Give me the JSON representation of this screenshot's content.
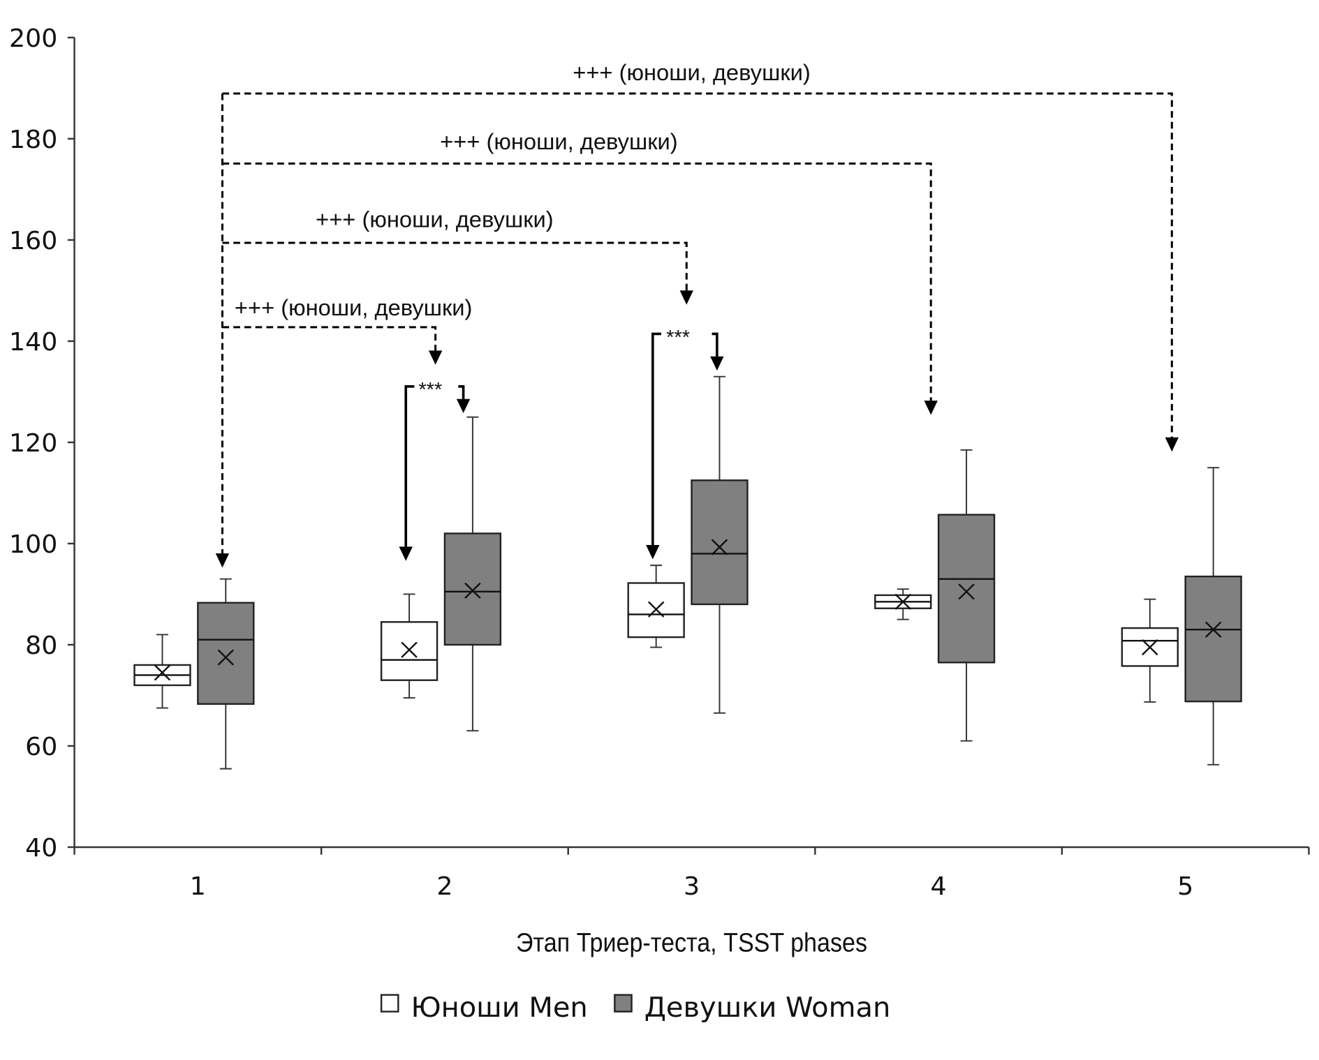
{
  "chart_data": {
    "type": "boxplot",
    "title": "",
    "xlabel": "Этап Триер-теста, TSST phases",
    "ylabel": "",
    "ylim": [
      40,
      200
    ],
    "yticks": [
      "40",
      "60",
      "80",
      "100",
      "120",
      "140",
      "160",
      "180",
      "200"
    ],
    "categories": [
      "1",
      "2",
      "3",
      "4",
      "5"
    ],
    "legend": {
      "position": "bottom"
    },
    "colors": {
      "men": "#ffffff",
      "women": "#808080"
    },
    "series": [
      {
        "name": "Юноши Men",
        "boxes": [
          {
            "min": 67.5,
            "q1": 72,
            "median": 74,
            "q3": 76,
            "max": 82,
            "mean": 74.5
          },
          {
            "min": 69.5,
            "q1": 73,
            "median": 77,
            "q3": 84.5,
            "max": 90,
            "mean": 79
          },
          {
            "min": 79.5,
            "q1": 81.5,
            "median": 86,
            "q3": 92.2,
            "max": 95.7,
            "mean": 87
          },
          {
            "min": 85,
            "q1": 87.2,
            "median": 88.5,
            "q3": 89.8,
            "max": 91,
            "mean": 88.5
          },
          {
            "min": 68.7,
            "q1": 75.8,
            "median": 80.8,
            "q3": 83.3,
            "max": 89,
            "mean": 79.5
          }
        ]
      },
      {
        "name": "Девушки Woman",
        "boxes": [
          {
            "min": 55.5,
            "q1": 68.3,
            "median": 81,
            "q3": 88.3,
            "max": 93,
            "mean": 77.5
          },
          {
            "min": 63,
            "q1": 80,
            "median": 90.5,
            "q3": 102,
            "max": 125,
            "mean": 90.7
          },
          {
            "min": 66.5,
            "q1": 88,
            "median": 98,
            "q3": 112.5,
            "max": 133,
            "mean": 99.3
          },
          {
            "min": 61,
            "q1": 76.5,
            "median": 93,
            "q3": 105.7,
            "max": 118.5,
            "mean": 90.5
          },
          {
            "min": 56.3,
            "q1": 68.8,
            "median": 83,
            "q3": 93.5,
            "max": 115,
            "mean": 83
          }
        ]
      }
    ],
    "annotations": {
      "phase_comparisons": [
        {
          "label": "+++ (юноши, девушки)",
          "from": "1",
          "to": "2"
        },
        {
          "label": "+++ (юноши, девушки)",
          "from": "1",
          "to": "3"
        },
        {
          "label": "+++ (юноши, девушки)",
          "from": "1",
          "to": "4"
        },
        {
          "label": "+++ (юноши, девушки)",
          "from": "1",
          "to": "5"
        }
      ],
      "sex_comparisons": [
        {
          "label": "***",
          "phase": "2"
        },
        {
          "label": "***",
          "phase": "3"
        }
      ]
    }
  }
}
